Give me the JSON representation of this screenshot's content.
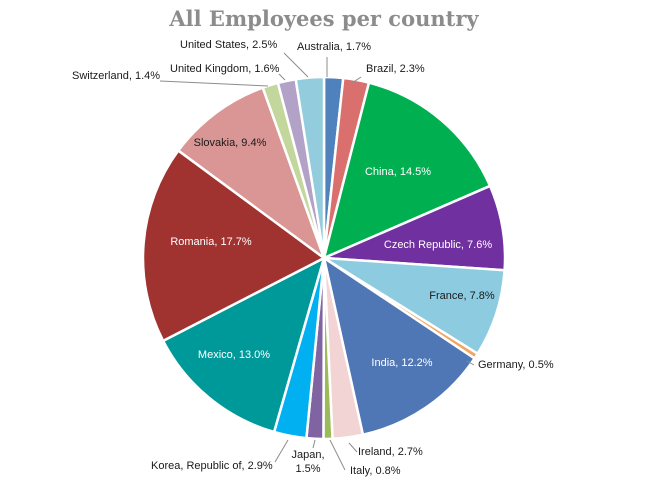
{
  "chart_data": {
    "type": "pie",
    "title": "All Employees per country",
    "slices": [
      {
        "label": "Australia, 1.7%",
        "value": 1.7,
        "color": "#4f81bd"
      },
      {
        "label": "Brazil, 2.3%",
        "value": 2.3,
        "color": "#d9706e"
      },
      {
        "label": "China, 14.5%",
        "value": 14.5,
        "color": "#00b050"
      },
      {
        "label": "Czech Republic, 7.6%",
        "value": 7.6,
        "color": "#7030a0"
      },
      {
        "label": "France, 7.8%",
        "value": 7.8,
        "color": "#8ccbe0"
      },
      {
        "label": "Germany, 0.5%",
        "value": 0.5,
        "color": "#f4a460"
      },
      {
        "label": "India, 12.2%",
        "value": 12.2,
        "color": "#4f76b5"
      },
      {
        "label": "Ireland, 2.7%",
        "value": 2.7,
        "color": "#f2d4d4"
      },
      {
        "label": "Italy, 0.8%",
        "value": 0.8,
        "color": "#9bbb59"
      },
      {
        "label": "Japan, 1.5%",
        "value": 1.5,
        "color": "#8064a2"
      },
      {
        "label": "Korea, Republic of, 2.9%",
        "value": 2.9,
        "color": "#00b0f0"
      },
      {
        "label": "Mexico, 13.0%",
        "value": 13.0,
        "color": "#009999"
      },
      {
        "label": "Romania, 17.7%",
        "value": 17.7,
        "color": "#a0322f"
      },
      {
        "label": "Slovakia, 9.4%",
        "value": 9.4,
        "color": "#d99694"
      },
      {
        "label": "Switzerland, 1.4%",
        "value": 1.4,
        "color": "#c3d69b"
      },
      {
        "label": "United Kingdom, 1.6%",
        "value": 1.6,
        "color": "#b3a2c7"
      },
      {
        "label": "United States, 2.5%",
        "value": 2.5,
        "color": "#93cddd"
      }
    ],
    "legend": "none"
  }
}
